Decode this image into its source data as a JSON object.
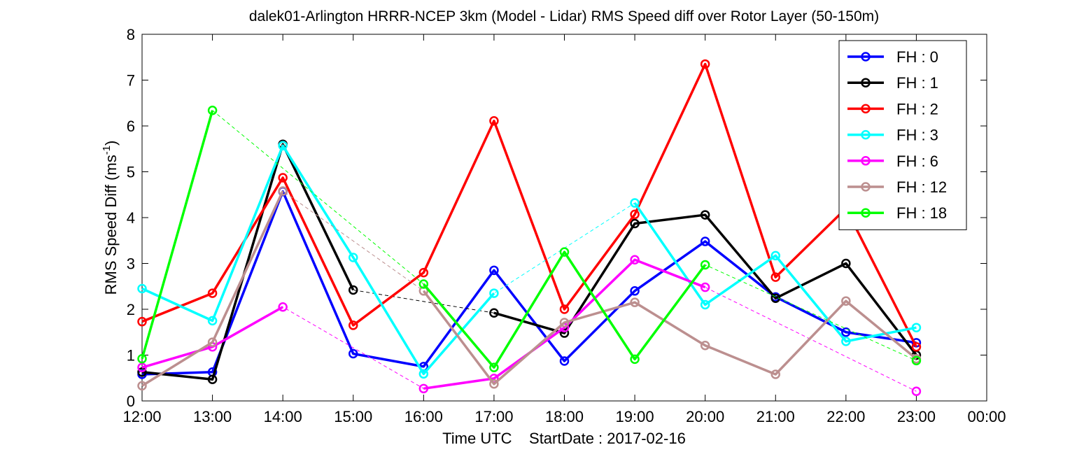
{
  "chart_data": {
    "type": "line",
    "title": "dalek01-Arlington HRRR-NCEP 3km (Model - Lidar) RMS Speed diff over Rotor Layer (50-150m)",
    "xlabel_left": "Time UTC",
    "xlabel_right": "StartDate : 2017-02-16",
    "ylabel": "RMS Speed Diff (ms",
    "ylabel_sup": "-1",
    "ylabel_close": ")",
    "x_tick_labels": [
      "12:00",
      "13:00",
      "14:00",
      "15:00",
      "16:00",
      "17:00",
      "18:00",
      "19:00",
      "20:00",
      "21:00",
      "22:00",
      "23:00",
      "00:00"
    ],
    "y_ticks": [
      "0",
      "1",
      "2",
      "3",
      "4",
      "5",
      "6",
      "7",
      "8"
    ],
    "ylim": [
      0,
      8
    ],
    "xlim": [
      0,
      12
    ],
    "legend_position": "top-right",
    "series": [
      {
        "name": "FH : 0",
        "color": "#0000ff",
        "x": [
          0,
          1,
          2,
          3,
          4,
          5,
          6,
          7,
          8,
          9,
          10,
          11
        ],
        "y": [
          0.58,
          0.63,
          4.57,
          1.03,
          0.75,
          2.85,
          0.87,
          2.4,
          3.48,
          2.27,
          1.5,
          1.27
        ]
      },
      {
        "name": "FH : 1",
        "color": "#000000",
        "x": [
          0,
          1,
          2,
          3,
          5,
          6,
          7,
          8,
          9,
          10,
          11
        ],
        "y": [
          0.63,
          0.47,
          5.6,
          2.42,
          1.92,
          1.48,
          3.87,
          4.06,
          2.24,
          3.0,
          1.0
        ]
      },
      {
        "name": "FH : 2",
        "color": "#ff0000",
        "x": [
          0,
          1,
          2,
          3,
          4,
          5,
          6,
          7,
          8,
          9,
          10,
          11
        ],
        "y": [
          1.73,
          2.35,
          4.87,
          1.65,
          2.8,
          6.11,
          2.0,
          4.07,
          7.35,
          2.7,
          4.2,
          1.18
        ]
      },
      {
        "name": "FH : 3",
        "color": "#00ffff",
        "x": [
          0,
          1,
          2,
          3,
          4,
          5,
          7,
          8,
          9,
          10,
          11
        ],
        "y": [
          2.45,
          1.75,
          5.57,
          3.13,
          0.59,
          2.35,
          4.32,
          2.1,
          3.17,
          1.3,
          1.6
        ]
      },
      {
        "name": "FH : 6",
        "color": "#ff00ff",
        "x": [
          0,
          1,
          2,
          4,
          5,
          6,
          7,
          8,
          11
        ],
        "y": [
          0.73,
          1.18,
          2.05,
          0.27,
          0.49,
          1.6,
          3.08,
          2.48,
          0.21
        ]
      },
      {
        "name": "FH : 12",
        "color": "#bc8f8f",
        "x": [
          0,
          1,
          2,
          4,
          5,
          6,
          7,
          8,
          9,
          10,
          11
        ],
        "y": [
          0.33,
          1.28,
          4.58,
          2.4,
          0.37,
          1.71,
          2.15,
          1.21,
          0.58,
          2.18,
          0.92
        ]
      },
      {
        "name": "FH : 18",
        "color": "#00ff00",
        "x": [
          0,
          1,
          4,
          5,
          6,
          7,
          8,
          11
        ],
        "y": [
          0.92,
          6.34,
          2.55,
          0.73,
          3.25,
          0.91,
          2.97,
          0.88
        ]
      }
    ]
  }
}
